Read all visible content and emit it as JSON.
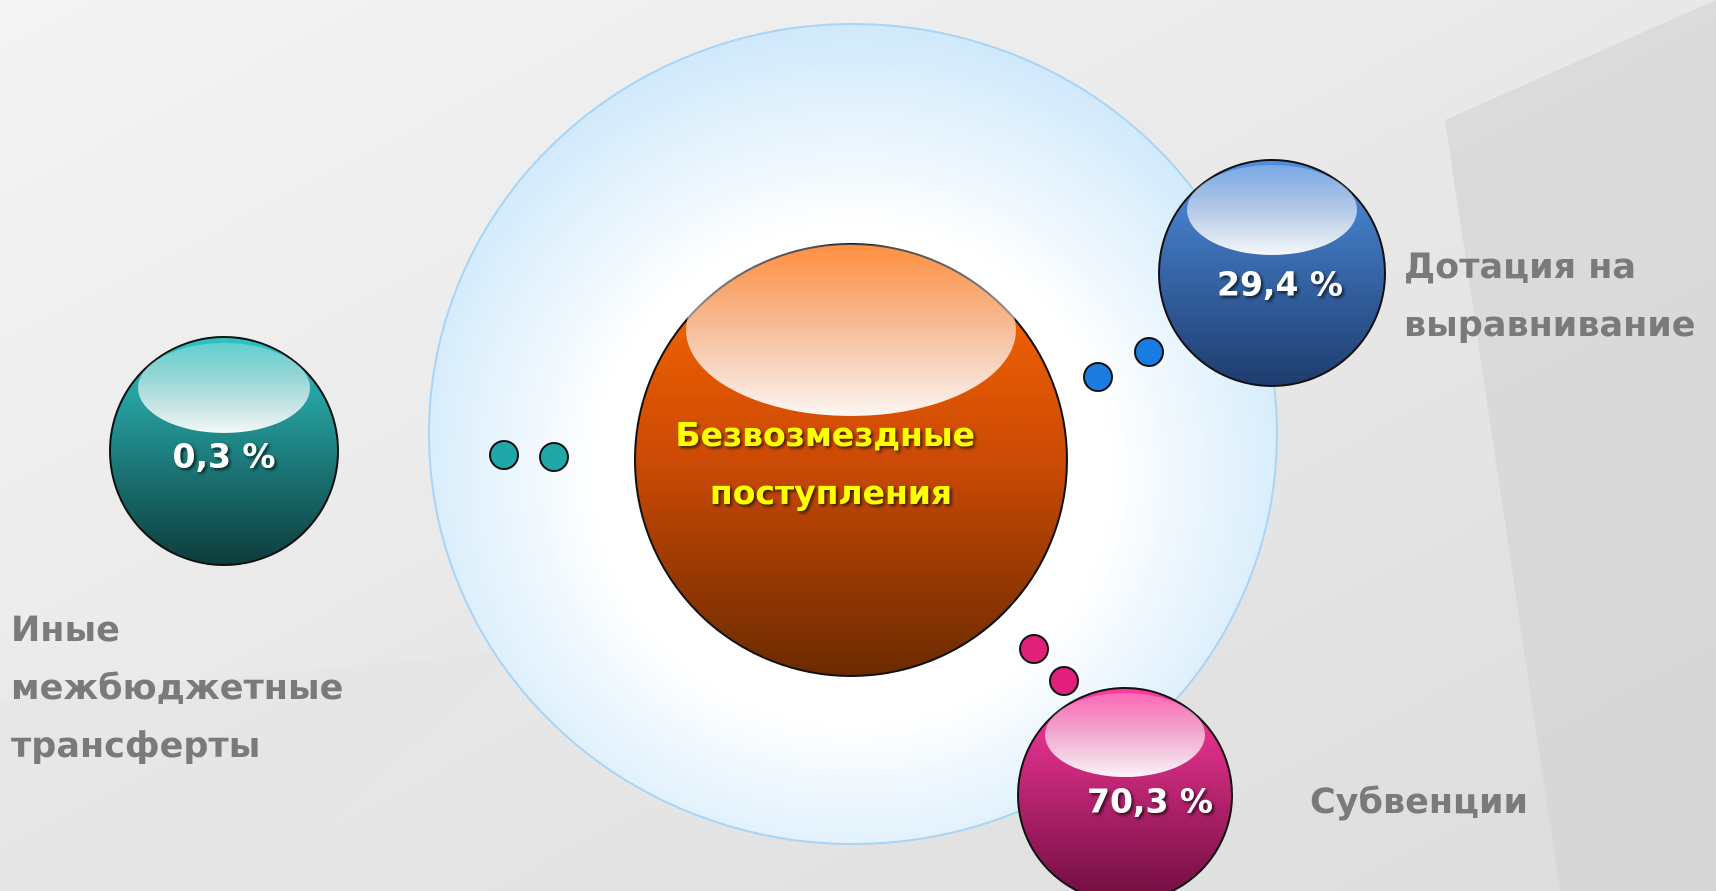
{
  "center": {
    "label_lines": [
      "Безвозмездные",
      "поступления"
    ]
  },
  "nodes": [
    {
      "value_label": "29,4 %",
      "label_lines": [
        "Дотация на",
        "выравнивание"
      ]
    },
    {
      "value_label": "0,3 %",
      "label_lines": [
        "Иные",
        "межбюджетные",
        "трансферты"
      ]
    },
    {
      "value_label": "70,3 %",
      "label_lines": [
        "Субвенции"
      ]
    }
  ]
}
